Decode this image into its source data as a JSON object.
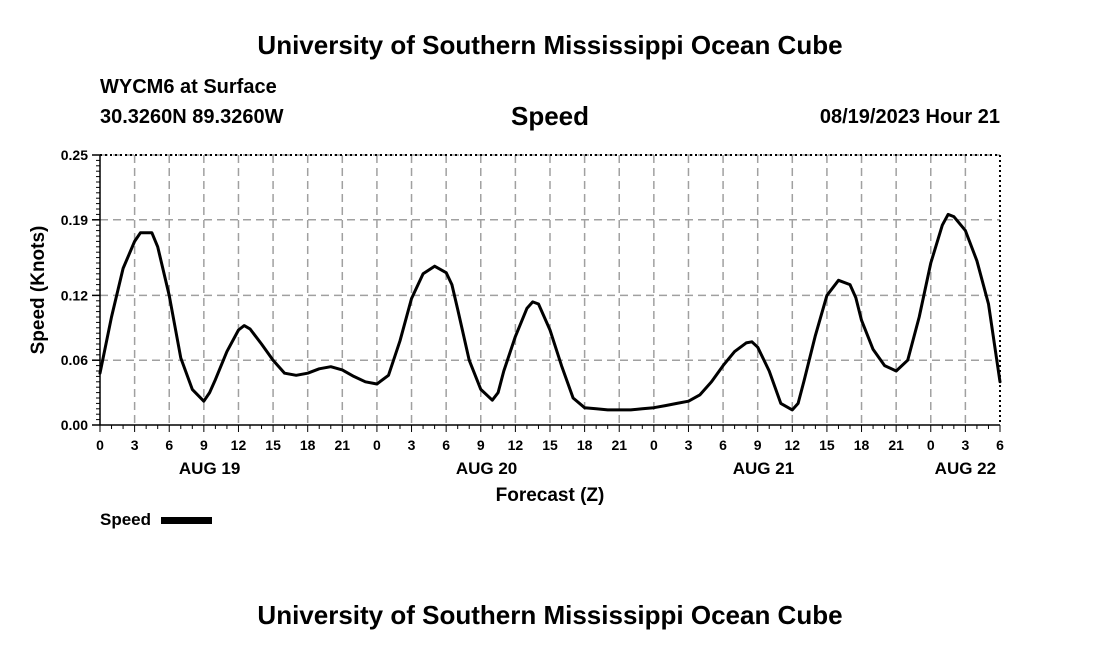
{
  "header": {
    "title_top": "University of Southern Mississippi Ocean Cube",
    "title_bottom": "University of Southern Mississippi Ocean Cube",
    "station": "WYCM6 at Surface",
    "coords": "30.3260N  89.3260W",
    "datetime": "08/19/2023 Hour 21"
  },
  "legend": {
    "label": "Speed"
  },
  "colors": {
    "line": "#000000",
    "grid": "#a0a0a0"
  },
  "chart_data": {
    "type": "line",
    "title": "Speed",
    "xlabel": "Forecast (Z)",
    "ylabel": "Speed (Knots)",
    "xlim": [
      0,
      78
    ],
    "ylim": [
      0,
      0.25
    ],
    "yticks": [
      0.0,
      0.06,
      0.12,
      0.19,
      0.25
    ],
    "ytick_labels": [
      "0.00",
      "0.06",
      "0.12",
      "0.19",
      "0.25"
    ],
    "xtick_labels": [
      "0",
      "3",
      "6",
      "9",
      "12",
      "15",
      "18",
      "21",
      "0",
      "3",
      "6",
      "9",
      "12",
      "15",
      "18",
      "21",
      "0",
      "3",
      "6",
      "9",
      "12",
      "15",
      "18",
      "21",
      "0",
      "3",
      "6"
    ],
    "date_labels": [
      {
        "label": "AUG 19",
        "hour": 9.5
      },
      {
        "label": "AUG 20",
        "hour": 33.5
      },
      {
        "label": "AUG 21",
        "hour": 57.5
      },
      {
        "label": "AUG 22",
        "hour": 75
      }
    ],
    "grid": true,
    "series": [
      {
        "name": "Speed",
        "x": [
          0,
          1,
          2,
          3,
          3.5,
          4.5,
          5,
          6,
          7,
          8,
          9,
          9.5,
          10,
          11,
          12,
          12.5,
          13,
          14,
          15,
          16,
          17,
          18,
          19,
          20,
          21,
          22,
          23,
          24,
          25,
          26,
          27,
          28,
          29,
          30,
          30.5,
          31,
          32,
          33,
          34,
          34.5,
          35,
          36,
          37,
          37.5,
          38,
          39,
          40,
          41,
          42,
          43,
          44,
          45,
          46,
          47,
          48,
          49,
          50,
          51,
          52,
          53,
          54,
          55,
          56,
          56.5,
          57,
          58,
          59,
          60,
          60.5,
          61,
          62,
          63,
          64,
          65,
          65.5,
          66,
          67,
          68,
          69,
          70,
          71,
          72,
          73,
          73.5,
          74,
          75,
          76,
          77,
          78
        ],
        "y": [
          0.048,
          0.1,
          0.145,
          0.17,
          0.178,
          0.178,
          0.165,
          0.12,
          0.062,
          0.033,
          0.022,
          0.03,
          0.042,
          0.068,
          0.088,
          0.092,
          0.089,
          0.075,
          0.06,
          0.048,
          0.046,
          0.048,
          0.052,
          0.054,
          0.051,
          0.045,
          0.04,
          0.038,
          0.046,
          0.078,
          0.117,
          0.14,
          0.147,
          0.141,
          0.13,
          0.107,
          0.06,
          0.033,
          0.023,
          0.03,
          0.05,
          0.082,
          0.108,
          0.114,
          0.112,
          0.088,
          0.055,
          0.025,
          0.016,
          0.015,
          0.014,
          0.014,
          0.014,
          0.015,
          0.016,
          0.018,
          0.02,
          0.022,
          0.028,
          0.04,
          0.055,
          0.068,
          0.076,
          0.077,
          0.072,
          0.05,
          0.02,
          0.014,
          0.02,
          0.04,
          0.083,
          0.12,
          0.134,
          0.13,
          0.118,
          0.097,
          0.07,
          0.055,
          0.05,
          0.06,
          0.1,
          0.15,
          0.185,
          0.195,
          0.193,
          0.18,
          0.152,
          0.112,
          0.04
        ]
      }
    ]
  }
}
